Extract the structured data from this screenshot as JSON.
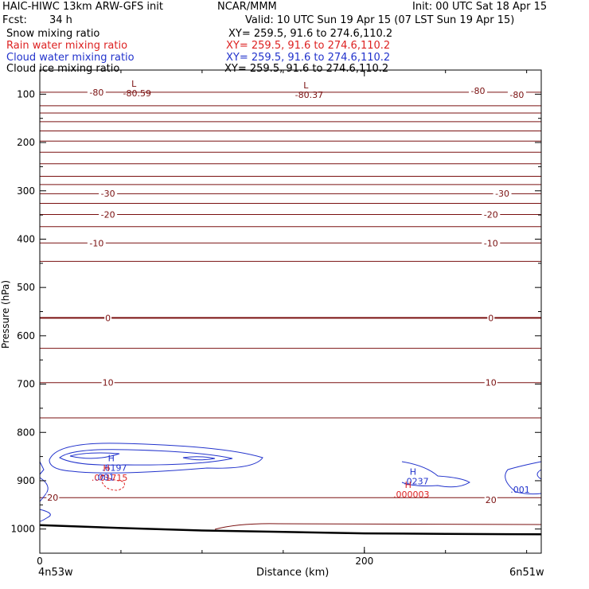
{
  "header": {
    "model": "HAIC-HIWC 13km ARW-GFS init",
    "org": "NCAR/MMM",
    "init": "Init: 00 UTC Sat 18 Apr 15",
    "fcst_label": "Fcst:",
    "fcst_value": "34 h",
    "valid": "Valid: 10 UTC Sun 19 Apr 15 (07 LST Sun 19 Apr 15)"
  },
  "legend": [
    {
      "name": "Snow mixing ratio",
      "xy": "XY= 259.5, 91.6 to 274.6,110.2",
      "color": "#000000"
    },
    {
      "name": "Rain water mixing ratio",
      "xy": "XY= 259.5, 91.6 to 274.6,110.2",
      "color": "#dd2222"
    },
    {
      "name": "Cloud water mixing ratio",
      "xy": "XY= 259.5, 91.6 to 274.6,110.2",
      "color": "#2233cc"
    },
    {
      "name": "Cloud ice mixing ratio",
      "xy": "XY= 259.5, 91.6 to 274.6,110.2",
      "color": "#000000"
    }
  ],
  "chart_data": {
    "type": "line",
    "ylabel": "Pressure (hPa)",
    "xlabel": "Distance (km)",
    "x_start_label": "4n53w",
    "x_end_label": "6n51w",
    "xlim": [
      0,
      309
    ],
    "ylim": [
      1050,
      50
    ],
    "xticks": [
      0,
      200
    ],
    "xminor": [
      0,
      50,
      100,
      150,
      200,
      250,
      300
    ],
    "yticks": [
      100,
      200,
      300,
      400,
      500,
      600,
      700,
      800,
      900,
      1000
    ],
    "isotherm_color": "#7a1010",
    "contour_levels": [
      -80,
      -75,
      -70,
      -65,
      -60,
      -55,
      -50,
      -45,
      -40,
      -35,
      -30,
      -25,
      -20,
      -15,
      -10,
      -5,
      0,
      5,
      10,
      15,
      20
    ],
    "temperature_contours": [
      {
        "level": -80,
        "x": [
          0,
          309
        ],
        "p": [
          96,
          96
        ]
      },
      {
        "level": -75,
        "x": [
          0,
          309
        ],
        "p": [
          124,
          124
        ]
      },
      {
        "level": -70,
        "x": [
          0,
          309
        ],
        "p": [
          139,
          139
        ]
      },
      {
        "level": -65,
        "x": [
          0,
          309
        ],
        "p": [
          157,
          157
        ]
      },
      {
        "level": -60,
        "x": [
          0,
          309
        ],
        "p": [
          176,
          176
        ]
      },
      {
        "level": -55,
        "x": [
          0,
          309
        ],
        "p": [
          197,
          197
        ]
      },
      {
        "level": -50,
        "x": [
          0,
          309
        ],
        "p": [
          220,
          220
        ]
      },
      {
        "level": -45,
        "x": [
          0,
          309
        ],
        "p": [
          244,
          244
        ]
      },
      {
        "level": -40,
        "x": [
          0,
          309
        ],
        "p": [
          270,
          270
        ]
      },
      {
        "level": -35,
        "x": [
          0,
          309
        ],
        "p": [
          287,
          287
        ]
      },
      {
        "level": -30,
        "x": [
          0,
          309
        ],
        "p": [
          306,
          306
        ]
      },
      {
        "level": -25,
        "x": [
          0,
          309
        ],
        "p": [
          326,
          326
        ]
      },
      {
        "level": -20,
        "x": [
          0,
          309
        ],
        "p": [
          349,
          349
        ]
      },
      {
        "level": -15,
        "x": [
          0,
          309
        ],
        "p": [
          374,
          374
        ]
      },
      {
        "level": -10,
        "x": [
          0,
          309
        ],
        "p": [
          408,
          408
        ]
      },
      {
        "level": -5,
        "x": [
          0,
          309
        ],
        "p": [
          446,
          446
        ]
      },
      {
        "level": 0,
        "x": [
          0,
          309
        ],
        "p": [
          563,
          563
        ]
      },
      {
        "level": 5,
        "x": [
          0,
          309
        ],
        "p": [
          626,
          626
        ]
      },
      {
        "level": 10,
        "x": [
          0,
          309
        ],
        "p": [
          697,
          697
        ]
      },
      {
        "level": 15,
        "x": [
          0,
          309
        ],
        "p": [
          770,
          770
        ]
      },
      {
        "level": 20,
        "x": [
          0,
          309
        ],
        "p": [
          935,
          935
        ]
      }
    ],
    "contour_labels": [
      {
        "text": "-80",
        "x": 35,
        "p": 96
      },
      {
        "text": "-80",
        "x": 270,
        "p": 93
      },
      {
        "text": "-80",
        "x": 294,
        "p": 101
      },
      {
        "text": "-30",
        "x": 42,
        "p": 305
      },
      {
        "text": "-30",
        "x": 285,
        "p": 305
      },
      {
        "text": "-20",
        "x": 42,
        "p": 349
      },
      {
        "text": "-20",
        "x": 278,
        "p": 349
      },
      {
        "text": "-10",
        "x": 35,
        "p": 408
      },
      {
        "text": "-10",
        "x": 278,
        "p": 408
      },
      {
        "text": "0",
        "x": 42,
        "p": 563
      },
      {
        "text": "0",
        "x": 278,
        "p": 563
      },
      {
        "text": "10",
        "x": 42,
        "p": 697
      },
      {
        "text": "10",
        "x": 278,
        "p": 697
      },
      {
        "text": "20",
        "x": 8,
        "p": 935
      },
      {
        "text": "20",
        "x": 278,
        "p": 940
      }
    ],
    "extrema": [
      {
        "type": "L",
        "value": "-80.59",
        "x": 58,
        "p": 85,
        "color": "#7a1010"
      },
      {
        "type": "L",
        "value": "-80.37",
        "x": 164,
        "p": 88,
        "color": "#7a1010"
      },
      {
        "type": "H",
        "value": ".6197",
        "x": 44,
        "p": 860,
        "color": "#2233cc"
      },
      {
        "type": "H",
        "value": ".001715",
        "x": 41,
        "p": 880,
        "color": "#dd2222"
      },
      {
        "type": "H",
        "value": ".0237",
        "x": 230,
        "p": 888,
        "color": "#2233cc"
      },
      {
        "type": "H",
        "value": ".000003",
        "x": 227,
        "p": 915,
        "color": "#dd2222"
      }
    ],
    "cloud_water_labels": [
      {
        "text": ".001",
        "x": 40,
        "p": 899
      },
      {
        "text": ".001",
        "x": 296,
        "p": 925
      }
    ],
    "ground_surface": {
      "x": [
        0,
        50,
        100,
        150,
        200,
        250,
        309
      ],
      "p": [
        992,
        998,
        1003,
        1006,
        1009,
        1010,
        1011
      ]
    }
  }
}
